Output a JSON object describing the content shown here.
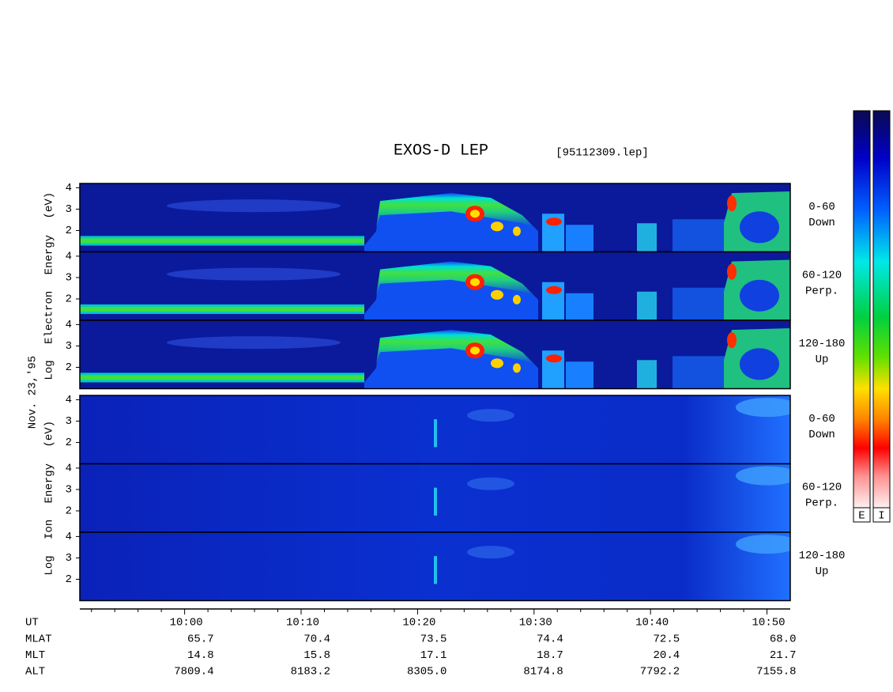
{
  "chart_data": {
    "type": "spectrogram",
    "title": "EXOS-D LEP",
    "file_label": "[95112309.lep]",
    "date_label": "Nov. 23,'95",
    "xlim": [
      591,
      652
    ],
    "xticks": [
      {
        "value": 600,
        "label": "10:00"
      },
      {
        "value": 610,
        "label": "10:10"
      },
      {
        "value": 620,
        "label": "10:20"
      },
      {
        "value": 630,
        "label": "10:30"
      },
      {
        "value": 640,
        "label": "10:40"
      },
      {
        "value": 650,
        "label": "10:50"
      }
    ],
    "xminorticks": [
      592,
      594,
      596,
      598,
      602,
      604,
      606,
      608,
      612,
      614,
      616,
      618,
      622,
      624,
      626,
      628,
      632,
      634,
      636,
      638,
      642,
      644,
      646,
      648
    ],
    "ylim": [
      1,
      4.2
    ],
    "yticks": [
      2,
      3,
      4
    ],
    "groups": [
      {
        "label": "Log Electron Energy (eV)",
        "panels": [
          {
            "label": [
              "0-60",
              "Down"
            ]
          },
          {
            "label": [
              "60-120",
              "Perp."
            ]
          },
          {
            "label": [
              "120-180",
              "Up"
            ]
          }
        ]
      },
      {
        "label": "Log Ion Energy (eV)",
        "panels": [
          {
            "label": [
              "0-60",
              "Down"
            ]
          },
          {
            "label": [
              "60-120",
              "Perp."
            ]
          },
          {
            "label": [
              "120-180",
              "Up"
            ]
          }
        ]
      }
    ],
    "table": {
      "ut_label": "UT",
      "rows": [
        {
          "name": "MLAT",
          "values": [
            "65.7",
            "70.4",
            "73.5",
            "74.4",
            "72.5",
            "68.0"
          ]
        },
        {
          "name": "MLT",
          "values": [
            "14.8",
            "15.8",
            "17.1",
            "18.7",
            "20.4",
            "21.7"
          ]
        },
        {
          "name": "ALT",
          "values": [
            "7809.4",
            "8183.2",
            "8305.0",
            "8174.8",
            "7792.2",
            "7155.8"
          ]
        }
      ]
    },
    "colorbars": [
      "E",
      "I"
    ]
  }
}
